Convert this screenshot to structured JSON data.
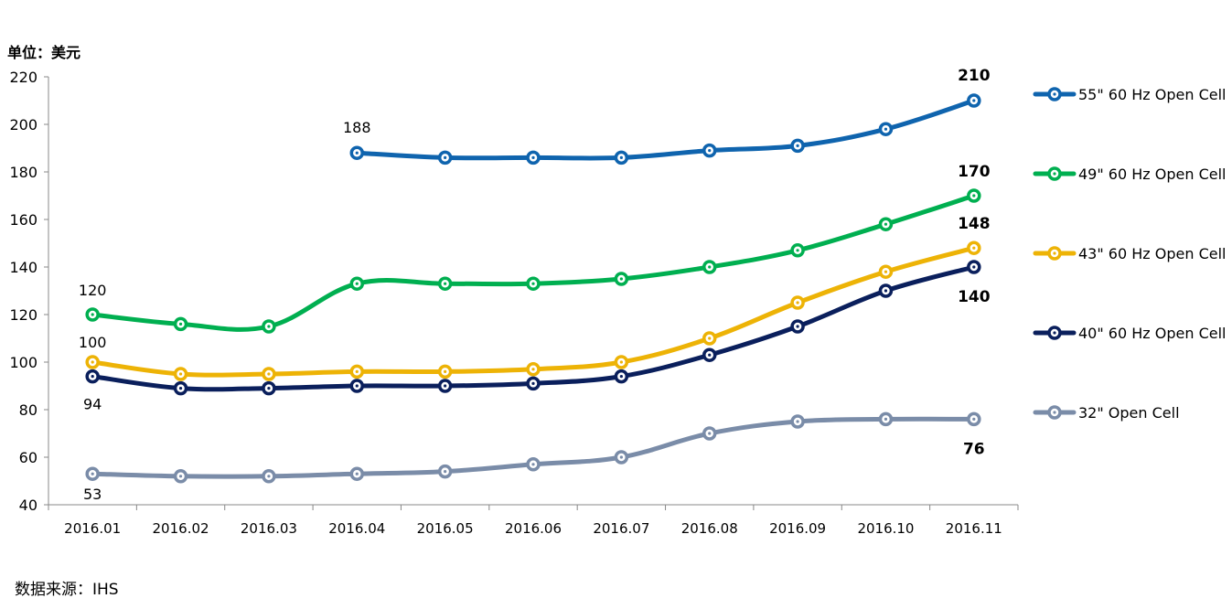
{
  "header": {
    "unit": "单位：美元"
  },
  "footer": {
    "source": "数据来源：IHS"
  },
  "chart_data": {
    "type": "line",
    "categories": [
      "2016.01",
      "2016.02",
      "2016.03",
      "2016.04",
      "2016.05",
      "2016.06",
      "2016.07",
      "2016.08",
      "2016.09",
      "2016.10",
      "2016.11"
    ],
    "ylim": [
      40,
      220
    ],
    "yticks": [
      "220",
      "200",
      "180",
      "160",
      "140",
      "120",
      "100",
      "80",
      "60",
      "40"
    ],
    "legend_position": "right",
    "grid": false,
    "series": [
      {
        "name": "55\" 60 Hz Open Cell",
        "color": "#0F64AE",
        "values": [
          null,
          null,
          null,
          188,
          186,
          186,
          186,
          189,
          191,
          198,
          210
        ]
      },
      {
        "name": "49\" 60 Hz Open Cell",
        "color": "#00AF50",
        "values": [
          120,
          116,
          115,
          133,
          133,
          133,
          135,
          140,
          147,
          158,
          170
        ]
      },
      {
        "name": "43\" 60 Hz Open Cell",
        "color": "#EDB306",
        "values": [
          100,
          95,
          95,
          96,
          96,
          97,
          100,
          110,
          125,
          138,
          148
        ]
      },
      {
        "name": "40\" 60 Hz Open Cell",
        "color": "#0A1F5C",
        "values": [
          94,
          89,
          89,
          90,
          90,
          91,
          94,
          103,
          115,
          130,
          140
        ]
      },
      {
        "name": "32\" Open Cell",
        "color": "#7A8CA8",
        "values": [
          53,
          52,
          52,
          53,
          54,
          57,
          60,
          70,
          75,
          76,
          76
        ]
      }
    ],
    "data_labels": [
      {
        "series": 0,
        "index": 3,
        "text": "188",
        "bold": false
      },
      {
        "series": 0,
        "index": 10,
        "text": "210",
        "bold": true
      },
      {
        "series": 1,
        "index": 0,
        "text": "120",
        "bold": false
      },
      {
        "series": 1,
        "index": 10,
        "text": "170",
        "bold": true
      },
      {
        "series": 2,
        "index": 0,
        "text": "100",
        "bold": false
      },
      {
        "series": 2,
        "index": 10,
        "text": "148",
        "bold": true
      },
      {
        "series": 3,
        "index": 0,
        "text": "94",
        "bold": false
      },
      {
        "series": 3,
        "index": 10,
        "text": "140",
        "bold": true
      },
      {
        "series": 4,
        "index": 0,
        "text": "53",
        "bold": false
      },
      {
        "series": 4,
        "index": 10,
        "text": "76",
        "bold": true
      }
    ]
  }
}
